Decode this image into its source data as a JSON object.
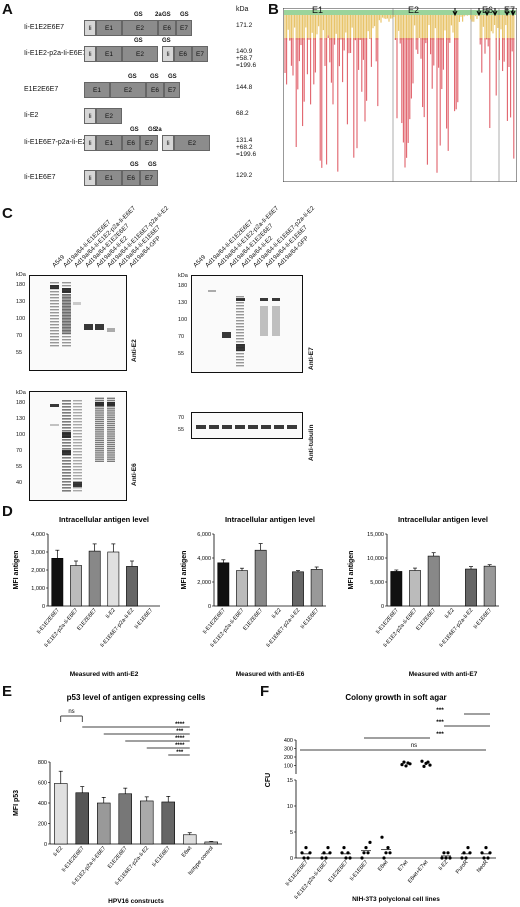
{
  "panel_letters": [
    "A",
    "B",
    "C",
    "D",
    "E",
    "F"
  ],
  "panelA": {
    "kda_header": "kDa",
    "constructs": [
      {
        "name": "Ii-E1E2E6E7",
        "kda": [
          "171.2"
        ]
      },
      {
        "name": "Ii-E1E2-p2a-Ii-E6E7",
        "kda": [
          "140.9",
          "+58.7",
          "=199.6"
        ]
      },
      {
        "name": "E1E2E6E7",
        "kda": [
          "144.8"
        ]
      },
      {
        "name": "Ii-E2",
        "kda": [
          "68.2"
        ]
      },
      {
        "name": "Ii-E1E6E7-p2a-Ii-E2",
        "kda": [
          "131.4",
          "+68.2",
          "=199.6"
        ]
      },
      {
        "name": "Ii-E1E6E7",
        "kda": [
          "129.2"
        ]
      }
    ],
    "gs": "GS",
    "twoa": "2a",
    "seg": {
      "ii": "Ii",
      "e1": "E1",
      "e2": "E2",
      "e6": "E6",
      "e7": "E7"
    }
  },
  "panelB": {
    "labels": [
      "E1",
      "E2",
      "E6",
      "E7"
    ]
  },
  "panelC": {
    "lanes_left": [
      "A549",
      "Ad19a/64-Ii-E1E2E6E7",
      "Ad19a/64-Ii-E1E2-p2a-Ii-E6E7",
      "Ad19a/64-E1E2E6E7",
      "Ad19a/64-Ii-E2",
      "Ad19a/64-Ii-E1E6E7-p2a-Ii-E2",
      "Ad19a/64-Ii-E1E6E7",
      "Ad19a/64-GFP"
    ],
    "lanes_right": [
      "A549",
      "Ad19a/64-Ii-E1E2E6E7",
      "Ad19a/64-Ii-E1E2-p2a-Ii-E6E7",
      "Ad19a/64-E1E2E6E7",
      "Ad19a/64-Ii-E2",
      "Ad19a/64-Ii-E1E6E7-p2a-Ii-E2",
      "Ad19a/64-Ii-E1E6E7",
      "Ad19a/64-GFP"
    ],
    "kda": "kDa",
    "markers_e2": [
      "180",
      "130",
      "100",
      "70",
      "55"
    ],
    "markers_e6": [
      "180",
      "130",
      "100",
      "70",
      "55",
      "40"
    ],
    "markers_e7": [
      "180",
      "130",
      "100",
      "70",
      "55"
    ],
    "markers_tub": [
      "70",
      "55"
    ],
    "ab": {
      "e2": "Anti-E2",
      "e6": "Anti-E6",
      "e7": "Anti-E7",
      "tub": "Anti-tubulin"
    }
  },
  "chart_data": [
    {
      "type": "bar",
      "title": "Intracellular antigen level",
      "ylabel": "MFI antigen",
      "xlabel": "Measured with anti-E2",
      "ylim": [
        0,
        4000
      ],
      "yticks": [
        "0",
        "1,000",
        "2,000",
        "3,000",
        "4,000"
      ],
      "categories": [
        "Ii-E1E2E6E7",
        "Ii-E1E2-p2a-Ii-E6E7",
        "E1E2E6E7",
        "Ii-E2",
        "Ii-E1E6E7-p2a-Ii-E2",
        "Ii-E1E6E7"
      ],
      "values": [
        2650,
        2250,
        3050,
        3000,
        2200,
        null
      ],
      "errors": [
        450,
        250,
        400,
        450,
        300,
        null
      ],
      "colors": [
        "#111111",
        "#bbbbbb",
        "#888888",
        "#e0e0e0",
        "#666666",
        "#ffffff"
      ]
    },
    {
      "type": "bar",
      "title": "Intracellular antigen level",
      "ylabel": "MFI antigen",
      "xlabel": "Measured with anti-E6",
      "ylim": [
        0,
        6000
      ],
      "yticks": [
        "0",
        "2,000",
        "4,000",
        "6,000"
      ],
      "categories": [
        "Ii-E1E2E6E7",
        "Ii-E1E2-p2a-Ii-E6E7",
        "E1E2E6E7",
        "Ii-E2",
        "Ii-E1E6E7-p2a-Ii-E2",
        "Ii-E1E6E7"
      ],
      "values": [
        3600,
        2950,
        4650,
        null,
        2850,
        3050
      ],
      "errors": [
        250,
        200,
        550,
        null,
        100,
        200
      ],
      "colors": [
        "#111111",
        "#bbbbbb",
        "#888888",
        "#e0e0e0",
        "#666666",
        "#999999"
      ]
    },
    {
      "type": "bar",
      "title": "Intracellular antigen level",
      "ylabel": "MFI antigen",
      "xlabel": "Measured with anti-E7",
      "ylim": [
        0,
        15000
      ],
      "yticks": [
        "0",
        "5,000",
        "10,000",
        "15,000"
      ],
      "categories": [
        "Ii-E1E2E6E7",
        "Ii-E1E2-p2a-Ii-E6E7",
        "E1E2E6E7",
        "Ii-E2",
        "Ii-E1E6E7-p2a-Ii-E2",
        "Ii-E1E6E7"
      ],
      "values": [
        7200,
        7400,
        10400,
        null,
        7700,
        8300
      ],
      "errors": [
        300,
        500,
        700,
        null,
        500,
        300
      ],
      "colors": [
        "#111111",
        "#bbbbbb",
        "#888888",
        "#e0e0e0",
        "#666666",
        "#999999"
      ]
    },
    {
      "type": "bar",
      "title": "p53 level of antigen expressing cells",
      "ylabel": "MFI p53",
      "xlabel": "HPV16 constructs",
      "ylim": [
        0,
        800
      ],
      "yticks": [
        "0",
        "200",
        "400",
        "600",
        "800"
      ],
      "categories": [
        "Ii-E2",
        "Ii-E1E2E6E7",
        "Ii-E1E2-p2a-Ii-E6E7",
        "E1E2E6E7",
        "Ii-E1E6E7-p2a-Ii-E2",
        "Ii-E1E6E7",
        "E6wt",
        "Isotype control"
      ],
      "values": [
        590,
        500,
        400,
        490,
        420,
        410,
        90,
        20
      ],
      "errors": [
        120,
        60,
        55,
        55,
        40,
        55,
        20,
        5
      ],
      "colors": [
        "#e0e0e0",
        "#555555",
        "#999999",
        "#777777",
        "#aaaaaa",
        "#666666",
        "#dddddd",
        "#bbbbbb"
      ],
      "sig": [
        "ns",
        "****",
        "***",
        "****",
        "****",
        "***"
      ]
    },
    {
      "type": "scatter",
      "title": "Colony growth in soft agar",
      "ylabel": "CFU",
      "xlabel": "NIH-3T3 polyclonal cell lines",
      "categories": [
        "Ii-E1E2E6E7",
        "Ii-E1E2-p2a-Ii-E6E7",
        "E1E2E6E7",
        "Ii-E1E6E7",
        "E6wt",
        "E7wt",
        "E6wt+E7wt",
        "Ii-E2",
        "PuroR",
        "NeoR"
      ],
      "yticks_top": [
        "100",
        "200",
        "300",
        "400"
      ],
      "yticks_bottom": [
        "0",
        "5",
        "10",
        "15"
      ],
      "values": [
        [
          1,
          0,
          2,
          0,
          1
        ],
        [
          0,
          1,
          0,
          2,
          1
        ],
        [
          1,
          2,
          0,
          1,
          0
        ],
        [
          0,
          1,
          2,
          1,
          3
        ],
        [
          4,
          0,
          1,
          2,
          1
        ],
        [
          110,
          140,
          95,
          130,
          120
        ],
        [
          150,
          90,
          125,
          140,
          105
        ],
        [
          0,
          1,
          0,
          1,
          0
        ],
        [
          0,
          1,
          0,
          2,
          1
        ],
        [
          1,
          0,
          2,
          0,
          1
        ]
      ],
      "sig": [
        "***",
        "***",
        "***",
        "ns"
      ]
    }
  ]
}
